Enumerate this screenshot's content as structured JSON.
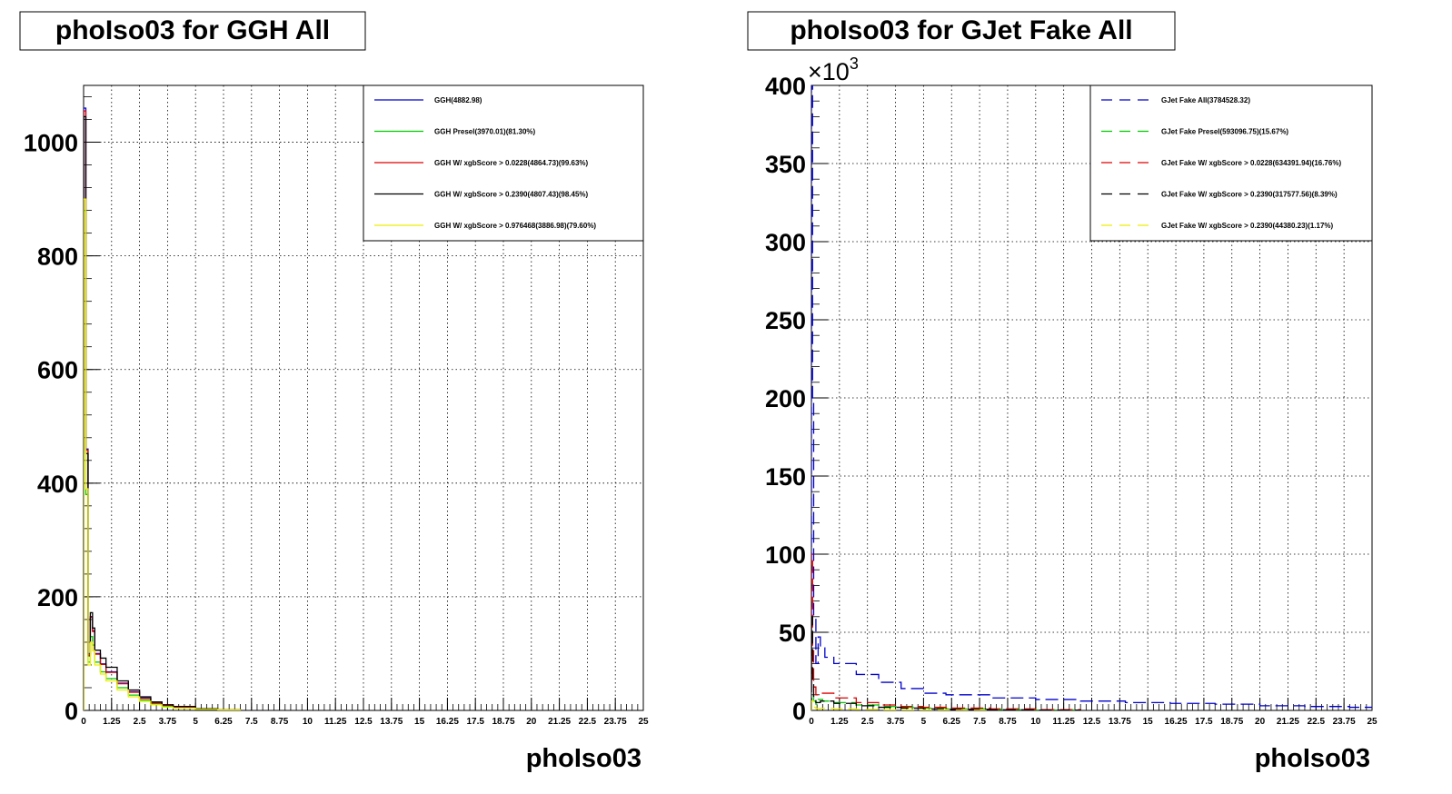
{
  "chart_data": [
    {
      "type": "line",
      "title": "phoIso03 for GGH All",
      "xlabel": "phoIso03",
      "ylabel": "",
      "xlim": [
        0,
        25
      ],
      "ylim": [
        0,
        1100
      ],
      "y_exponent": "",
      "x_tick_labels": [
        "0",
        "1.25",
        "2.5",
        "3.75",
        "5",
        "6.25",
        "7.5",
        "8.75",
        "10",
        "11.25",
        "12.5",
        "13.75",
        "15",
        "16.25",
        "17.5",
        "18.75",
        "20",
        "21.25",
        "22.5",
        "23.75",
        "25"
      ],
      "y_ticks": [
        0,
        200,
        400,
        600,
        800,
        1000
      ],
      "grid": true,
      "legend_position": "top-right",
      "series": [
        {
          "name": "GGH(4882.98)",
          "color": "#0000cc",
          "dash": "solid",
          "x": [
            0,
            0.1,
            0.2,
            0.3,
            0.4,
            0.5,
            0.75,
            1,
            1.5,
            2,
            2.5,
            3,
            3.5,
            4,
            5,
            6,
            7
          ],
          "y": [
            1060,
            460,
            100,
            165,
            140,
            100,
            82,
            68,
            48,
            33,
            22,
            14,
            9,
            6,
            3,
            1,
            0
          ]
        },
        {
          "name": "GGH Presel(3970.01)(81.30%)",
          "color": "#00cc00",
          "dash": "solid",
          "x": [
            0,
            0.1,
            0.2,
            0.3,
            0.4,
            0.5,
            0.75,
            1,
            1.5,
            2,
            2.5,
            3,
            3.5,
            4,
            5,
            6,
            7
          ],
          "y": [
            880,
            380,
            85,
            130,
            115,
            85,
            68,
            56,
            40,
            27,
            18,
            11,
            7,
            5,
            2,
            1,
            0
          ]
        },
        {
          "name": "GGH W/ xgbScore > 0.0228(4864.73)(99.63%)",
          "color": "#dd0000",
          "dash": "solid",
          "x": [
            0,
            0.1,
            0.2,
            0.3,
            0.4,
            0.5,
            0.75,
            1,
            1.5,
            2,
            2.5,
            3,
            3.5,
            4,
            5,
            6,
            7
          ],
          "y": [
            1055,
            458,
            98,
            164,
            139,
            99,
            81,
            67,
            47,
            32,
            21,
            13,
            9,
            6,
            3,
            1,
            0
          ]
        },
        {
          "name": "GGH W/ xgbScore > 0.2390(4807.43)(98.45%)",
          "color": "#000000",
          "dash": "solid",
          "x": [
            0,
            0.1,
            0.2,
            0.3,
            0.4,
            0.5,
            0.75,
            1,
            1.5,
            2,
            2.5,
            3,
            3.5,
            4,
            5,
            6,
            7
          ],
          "y": [
            1045,
            452,
            96,
            172,
            145,
            106,
            92,
            76,
            52,
            36,
            24,
            15,
            10,
            7,
            3,
            1,
            0
          ]
        },
        {
          "name": "GGH W/ xgbScore > 0.976468(3886.98)(79.60%)",
          "color": "#eeee00",
          "dash": "solid",
          "x": [
            0,
            0.1,
            0.2,
            0.3,
            0.4,
            0.5,
            0.75,
            1,
            1.5,
            2,
            2.5,
            3,
            3.5,
            4,
            5,
            6,
            7
          ],
          "y": [
            900,
            390,
            80,
            120,
            105,
            80,
            64,
            52,
            36,
            24,
            16,
            10,
            6,
            4,
            2,
            1,
            0
          ]
        }
      ]
    },
    {
      "type": "line",
      "title": "phoIso03 for GJet Fake All",
      "xlabel": "phoIso03",
      "ylabel": "",
      "xlim": [
        0,
        25
      ],
      "ylim": [
        0,
        400
      ],
      "y_exponent": "3",
      "x_tick_labels": [
        "0",
        "1.25",
        "2.5",
        "3.75",
        "5",
        "6.25",
        "7.5",
        "8.75",
        "10",
        "11.25",
        "12.5",
        "13.75",
        "15",
        "16.25",
        "17.5",
        "18.75",
        "20",
        "21.25",
        "22.5",
        "23.75",
        "25"
      ],
      "y_ticks": [
        0,
        50,
        100,
        150,
        200,
        250,
        300,
        350,
        400
      ],
      "grid": true,
      "legend_position": "top-right",
      "series": [
        {
          "name": "GJet Fake All(3784528.32)",
          "color": "#0000cc",
          "dash": "dashed",
          "x": [
            0,
            0.05,
            0.1,
            0.2,
            0.3,
            0.4,
            0.6,
            1,
            2,
            3,
            4,
            5,
            6,
            8,
            10,
            12,
            14,
            16,
            18,
            20,
            22,
            24,
            25
          ],
          "y": [
            400,
            200,
            60,
            30,
            47,
            40,
            34,
            30,
            23,
            18,
            14,
            11,
            10,
            8,
            7,
            6,
            5,
            4.5,
            4,
            3,
            2.5,
            2,
            2
          ]
        },
        {
          "name": "GJet Fake Presel(593096.75)(15.67%)",
          "color": "#00cc00",
          "dash": "dashed",
          "x": [
            0,
            0.1,
            0.2,
            0.3,
            0.5,
            1,
            2,
            3,
            4,
            5,
            6,
            8,
            10,
            12
          ],
          "y": [
            10,
            6,
            4,
            7,
            6,
            5,
            3.5,
            2.5,
            2,
            1.5,
            1,
            0.6,
            0.3,
            0
          ]
        },
        {
          "name": "GJet Fake W/ xgbScore > 0.0228(634391.94)(16.76%)",
          "color": "#dd0000",
          "dash": "dashed",
          "x": [
            0,
            0.05,
            0.1,
            0.2,
            0.4,
            1,
            2,
            3,
            4,
            5,
            6,
            8,
            10,
            12
          ],
          "y": [
            100,
            40,
            15,
            10,
            11,
            8,
            5,
            3.5,
            2.5,
            2,
            1.5,
            1,
            0.5,
            0
          ]
        },
        {
          "name": "GJet Fake W/ xgbScore > 0.2390(317577.56)(8.39%)",
          "color": "#000000",
          "dash": "dashed",
          "x": [
            0,
            0.05,
            0.1,
            0.2,
            0.4,
            1,
            2,
            3,
            4,
            5,
            6,
            8,
            10,
            12
          ],
          "y": [
            60,
            20,
            8,
            5,
            6,
            4.5,
            3,
            2,
            1.5,
            1,
            0.7,
            0.4,
            0.2,
            0
          ]
        },
        {
          "name": "GJet Fake W/ xgbScore > 0.2390(44380.23)(1.17%)",
          "color": "#eeee00",
          "dash": "dashed",
          "x": [
            0,
            0.1,
            0.2,
            0.4,
            1,
            2,
            3,
            4,
            6,
            8
          ],
          "y": [
            6,
            2,
            1.2,
            1.4,
            1,
            0.6,
            0.4,
            0.3,
            0.1,
            0
          ]
        }
      ]
    }
  ]
}
